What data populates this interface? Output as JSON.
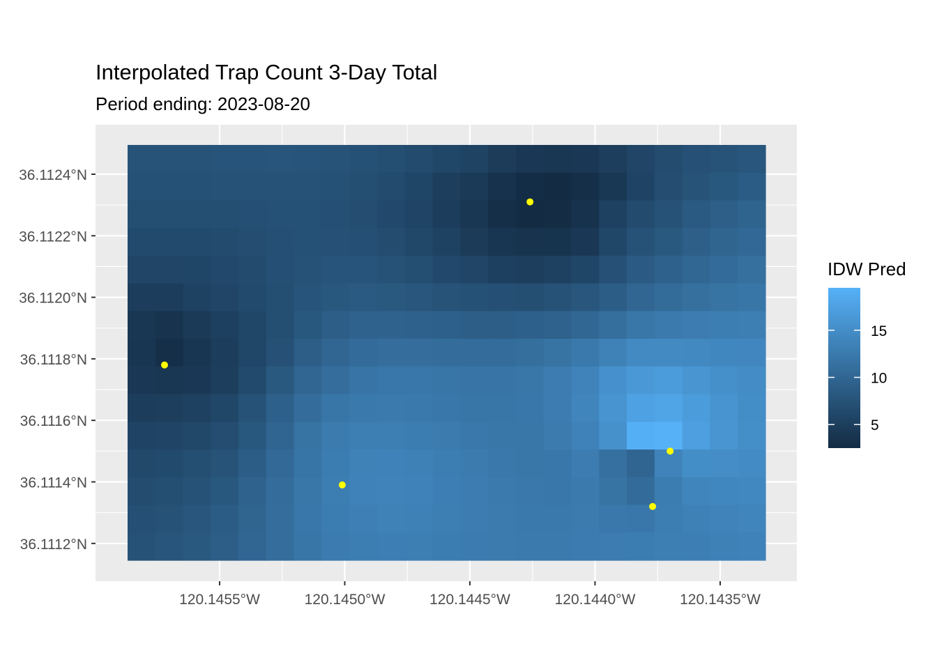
{
  "chart_data": {
    "type": "heatmap",
    "title": "Interpolated Trap Count 3-Day Total",
    "subtitle": "Period ending: 2023-08-20",
    "x_ticks": [
      "120.1455°W",
      "120.1450°W",
      "120.1445°W",
      "120.1440°W",
      "120.1435°W"
    ],
    "x_tick_values": [
      -120.1455,
      -120.145,
      -120.1445,
      -120.144,
      -120.1435
    ],
    "y_ticks": [
      "36.1124°N",
      "36.1122°N",
      "36.1120°N",
      "36.1118°N",
      "36.1116°N",
      "36.1114°N",
      "36.1112°N"
    ],
    "y_tick_values": [
      36.1124,
      36.1122,
      36.112,
      36.1118,
      36.1116,
      36.1114,
      36.1112
    ],
    "grid": true,
    "legend": {
      "title": "IDW Pred",
      "placement": "right",
      "min": 2.5,
      "max": 19.5,
      "breaks": [
        5,
        10,
        15
      ],
      "break_labels": [
        "5",
        "10",
        "15"
      ],
      "low_color": "#132b43",
      "high_color": "#56b1f7"
    },
    "raster": {
      "columns": 23,
      "rows": 15,
      "values": [
        [
          7.6,
          7.6,
          7.6,
          7.7,
          7.7,
          7.8,
          7.7,
          7.6,
          7.3,
          6.9,
          6.5,
          6.0,
          5.5,
          4.7,
          4.2,
          3.9,
          4.2,
          5.0,
          5.8,
          6.7,
          7.2,
          7.6,
          7.9
        ],
        [
          7.3,
          7.3,
          7.3,
          7.4,
          7.4,
          7.5,
          7.5,
          7.3,
          7.0,
          6.5,
          5.9,
          5.0,
          4.4,
          3.4,
          2.8,
          2.5,
          3.0,
          4.1,
          5.6,
          6.8,
          7.6,
          8.2,
          8.7
        ],
        [
          6.9,
          6.9,
          6.9,
          7.0,
          7.1,
          7.3,
          7.3,
          7.1,
          6.8,
          6.3,
          5.7,
          4.8,
          3.9,
          3.0,
          2.5,
          2.7,
          3.4,
          5.3,
          6.5,
          7.5,
          8.4,
          9.1,
          9.7
        ],
        [
          6.4,
          6.4,
          6.4,
          6.6,
          6.8,
          7.1,
          7.3,
          7.2,
          7.1,
          6.7,
          6.1,
          5.4,
          4.5,
          3.8,
          3.5,
          3.6,
          4.2,
          6.0,
          7.4,
          8.3,
          9.1,
          9.8,
          10.3
        ],
        [
          5.8,
          5.8,
          5.9,
          6.3,
          6.6,
          7.1,
          7.5,
          7.7,
          7.7,
          7.5,
          7.0,
          6.3,
          5.8,
          5.2,
          5.0,
          5.3,
          5.9,
          7.2,
          8.6,
          9.3,
          10.1,
          10.7,
          11.2
        ],
        [
          4.8,
          4.9,
          5.4,
          5.8,
          6.4,
          7.0,
          7.7,
          8.2,
          8.4,
          8.3,
          8.0,
          7.6,
          7.3,
          7.1,
          7.0,
          7.4,
          7.9,
          8.9,
          10.0,
          10.6,
          11.2,
          11.7,
          12.0
        ],
        [
          4.0,
          3.5,
          4.4,
          5.2,
          6.0,
          6.9,
          8.2,
          9.0,
          9.5,
          9.6,
          9.4,
          9.2,
          9.0,
          9.0,
          9.2,
          9.5,
          10.1,
          11.1,
          12.1,
          12.5,
          12.8,
          13.0,
          13.1
        ],
        [
          3.8,
          3.0,
          3.8,
          4.8,
          6.0,
          7.2,
          9.0,
          10.0,
          10.7,
          11.0,
          11.0,
          10.9,
          10.8,
          10.8,
          11.1,
          11.6,
          12.4,
          13.5,
          14.6,
          14.6,
          14.4,
          14.2,
          14.1
        ],
        [
          4.2,
          3.9,
          4.2,
          5.0,
          6.4,
          8.3,
          10.0,
          11.0,
          11.8,
          12.2,
          12.2,
          12.0,
          11.8,
          11.8,
          12.1,
          12.8,
          13.7,
          15.5,
          16.4,
          16.8,
          16.0,
          15.3,
          14.8
        ],
        [
          4.9,
          5.0,
          5.3,
          6.0,
          7.4,
          9.2,
          10.9,
          12.0,
          12.4,
          12.5,
          12.4,
          12.2,
          12.0,
          12.0,
          12.2,
          12.8,
          13.9,
          15.8,
          17.5,
          18.0,
          16.8,
          15.8,
          15.0
        ],
        [
          5.6,
          5.7,
          6.1,
          6.8,
          8.2,
          9.9,
          11.6,
          12.6,
          13.1,
          13.1,
          12.9,
          12.6,
          12.3,
          12.1,
          12.1,
          12.6,
          13.6,
          15.4,
          19.3,
          19.5,
          17.2,
          15.9,
          15.2
        ],
        [
          6.2,
          6.4,
          6.9,
          7.6,
          8.9,
          10.4,
          11.9,
          12.9,
          13.5,
          13.6,
          13.4,
          13.0,
          12.6,
          12.3,
          12.1,
          12.2,
          12.8,
          11.3,
          9.9,
          13.7,
          15.0,
          14.9,
          14.7
        ],
        [
          6.7,
          7.0,
          7.5,
          8.2,
          9.5,
          10.8,
          12.1,
          13.0,
          13.6,
          13.7,
          13.6,
          13.2,
          12.8,
          12.5,
          12.3,
          12.2,
          12.5,
          11.7,
          10.7,
          12.9,
          14.0,
          14.2,
          14.3
        ],
        [
          7.1,
          7.4,
          8.0,
          8.7,
          9.8,
          11.0,
          12.2,
          12.9,
          13.3,
          13.5,
          13.4,
          13.1,
          12.8,
          12.6,
          12.4,
          12.4,
          12.6,
          12.3,
          12.2,
          13.0,
          13.4,
          13.7,
          13.9
        ],
        [
          7.4,
          7.8,
          8.3,
          9.0,
          10.0,
          11.0,
          12.0,
          12.7,
          13.0,
          13.2,
          13.1,
          12.9,
          12.7,
          12.6,
          12.5,
          12.5,
          12.7,
          12.8,
          12.9,
          13.1,
          13.2,
          13.4,
          13.6
        ]
      ]
    },
    "traps": [
      {
        "lon": -120.14572,
        "lat": 36.11178
      },
      {
        "lon": -120.14501,
        "lat": 36.11139
      },
      {
        "lon": -120.14426,
        "lat": 36.11231
      },
      {
        "lon": -120.14377,
        "lat": 36.11132
      },
      {
        "lon": -120.1437,
        "lat": 36.1115
      }
    ],
    "trap_color": "#ffff00"
  }
}
